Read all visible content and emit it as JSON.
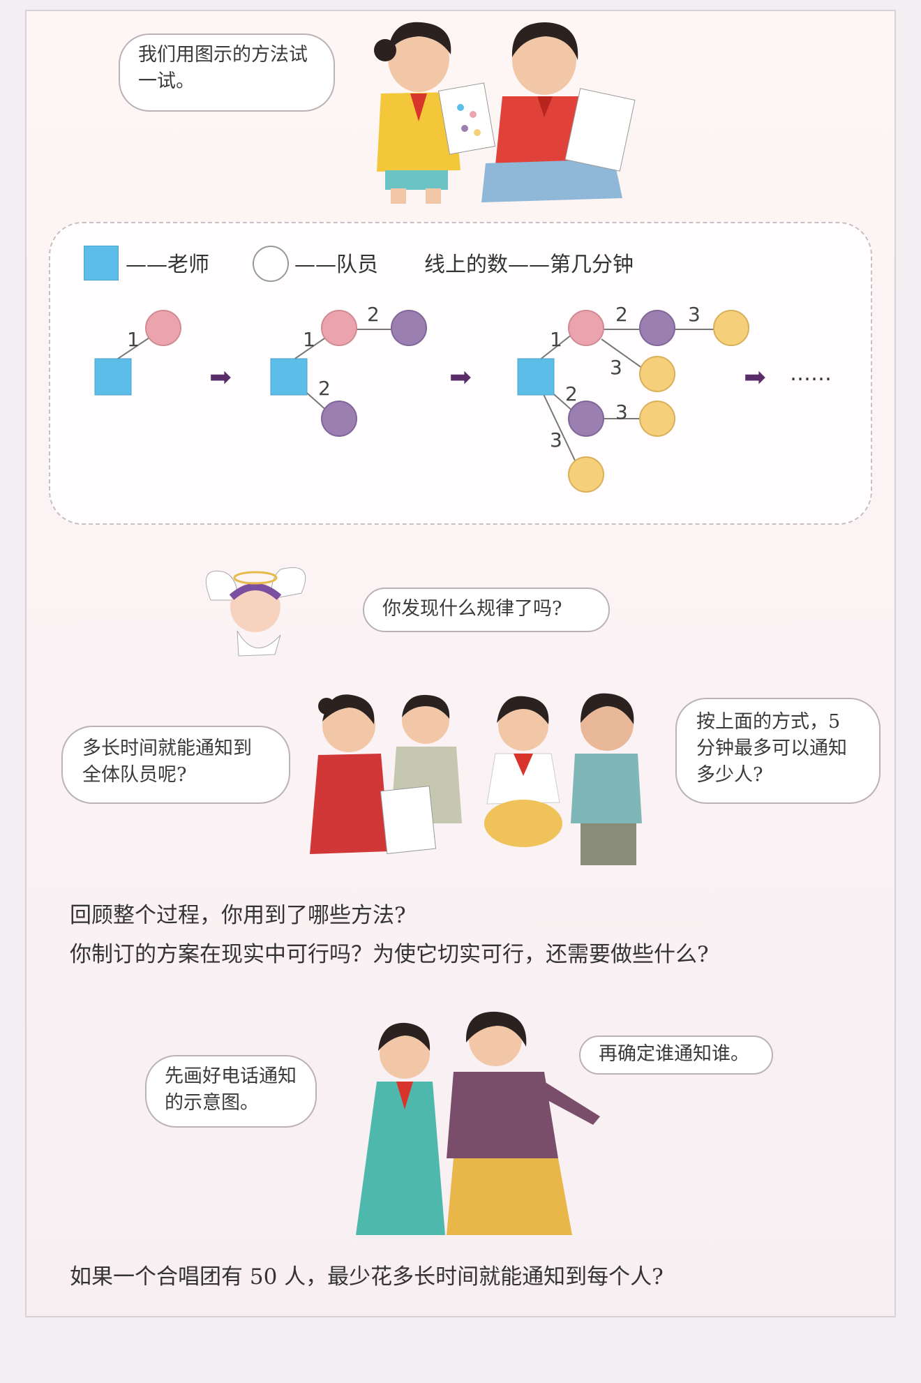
{
  "bubbles": {
    "b1": "我们用图示的方法试一试。",
    "b2": "你发现什么规律了吗?",
    "b3": "多长时间就能通知到全体队员呢?",
    "b4": "按上面的方式，5 分钟最多可以通知多少人?",
    "b5": "先画好电话通知的示意图。",
    "b6": "再确定谁通知谁。"
  },
  "legend": {
    "teacher": "——老师",
    "member": "——队员",
    "line_number": "线上的数——第几分钟"
  },
  "diagram": {
    "ellipsis": "……",
    "minute_labels": [
      "1",
      "2",
      "3"
    ]
  },
  "text": {
    "q1": "回顾整个过程，你用到了哪些方法?",
    "q2": "你制订的方案在现实中可行吗？为使它切实可行，还需要做些什么?",
    "q3": "如果一个合唱团有 50 人，最少花多长时间就能通知到每个人?"
  },
  "colors": {
    "teacher": "#5bbde8",
    "minute1": "#eba4ad",
    "minute2": "#9b7fb0",
    "minute3": "#f5cf7a"
  }
}
